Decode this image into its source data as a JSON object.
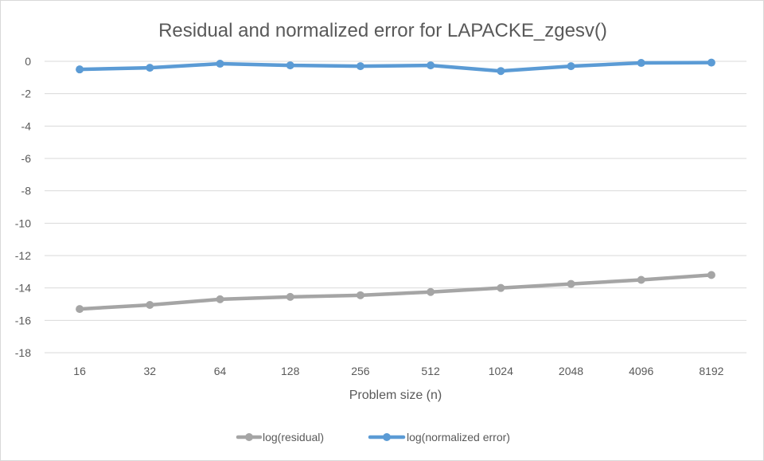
{
  "chart_data": {
    "type": "line",
    "title": "Residual and normalized error for LAPACKE_zgesv()",
    "xlabel": "Problem size (n)",
    "ylabel": "",
    "categories": [
      "16",
      "32",
      "64",
      "128",
      "256",
      "512",
      "1024",
      "2048",
      "4096",
      "8192"
    ],
    "ylim": [
      -18,
      0
    ],
    "yticks": [
      0,
      -2,
      -4,
      -6,
      -8,
      -10,
      -12,
      -14,
      -16,
      -18
    ],
    "grid": true,
    "legend_position": "bottom",
    "series": [
      {
        "name": "log(residual)",
        "color": "#a5a5a5",
        "values": [
          -15.3,
          -15.05,
          -14.7,
          -14.55,
          -14.45,
          -14.25,
          -14.0,
          -13.75,
          -13.5,
          -13.2
        ]
      },
      {
        "name": "log(normalized error)",
        "color": "#5b9bd5",
        "values": [
          -0.5,
          -0.4,
          -0.15,
          -0.25,
          -0.3,
          -0.25,
          -0.6,
          -0.3,
          -0.1,
          -0.08
        ]
      }
    ]
  }
}
